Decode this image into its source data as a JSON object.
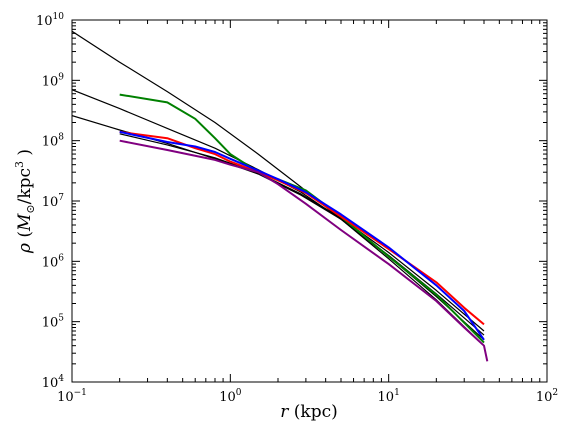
{
  "chart_data": {
    "type": "line",
    "xscale": "log",
    "yscale": "log",
    "xlim": [
      0.1,
      100
    ],
    "ylim": [
      10000,
      10000000000
    ],
    "x_ticks": [
      {
        "value": 0.1,
        "base": "10",
        "exp": "−1"
      },
      {
        "value": 1,
        "base": "10",
        "exp": "0"
      },
      {
        "value": 10,
        "base": "10",
        "exp": "1"
      },
      {
        "value": 100,
        "base": "10",
        "exp": "2"
      }
    ],
    "y_ticks": [
      {
        "value": 10000,
        "base": "10",
        "exp": "4"
      },
      {
        "value": 100000,
        "base": "10",
        "exp": "5"
      },
      {
        "value": 1000000,
        "base": "10",
        "exp": "6"
      },
      {
        "value": 10000000,
        "base": "10",
        "exp": "7"
      },
      {
        "value": 100000000,
        "base": "10",
        "exp": "8"
      },
      {
        "value": 1000000000,
        "base": "10",
        "exp": "9"
      },
      {
        "value": 10000000000,
        "base": "10",
        "exp": "10"
      }
    ],
    "xlabel": {
      "symbol": "r",
      "rest": " (kpc)"
    },
    "ylabel": {
      "symbol": "ρ",
      "open": " (",
      "m": "M",
      "sub": "⊙",
      "unit": "/kpc",
      "sup": "3",
      "close": " )"
    },
    "grid": false,
    "legend": "none",
    "series": [
      {
        "color": "#000000",
        "x": [
          0.1,
          0.2,
          0.4,
          0.8,
          1.5,
          2.8,
          5,
          10,
          20,
          40
        ],
        "y": [
          6500000000,
          2000000000,
          650000000,
          200000000,
          60000000,
          17000000,
          5000000,
          1100000,
          230000,
          40000
        ]
      },
      {
        "color": "#000000",
        "x": [
          0.1,
          0.2,
          0.4,
          0.8,
          1.5,
          2.8,
          5,
          10,
          20,
          40
        ],
        "y": [
          700000000,
          340000000,
          160000000,
          75000000,
          33000000,
          14000000,
          5000000,
          1200000,
          260000,
          50000
        ]
      },
      {
        "color": "#000000",
        "x": [
          0.1,
          0.2,
          0.4,
          0.8,
          1.5,
          2.8,
          5,
          10,
          20,
          40
        ],
        "y": [
          260000000,
          150000000,
          90000000,
          50000000,
          28000000,
          12500000,
          5000000,
          1250000,
          290000,
          60000
        ]
      },
      {
        "color": "#000000",
        "x": [
          0.2,
          0.4,
          0.8,
          1.5,
          2.8,
          5,
          10,
          20,
          40
        ],
        "y": [
          130000000,
          85000000,
          52000000,
          29000000,
          13000000,
          5200000,
          1400000,
          330000,
          70000
        ]
      },
      {
        "color": "#008000",
        "x": [
          0.2,
          0.4,
          0.6,
          0.8,
          1.0,
          1.5,
          2.0,
          3.0,
          5,
          10,
          20,
          40
        ],
        "y": [
          580000000,
          430000000,
          230000000,
          110000000,
          60000000,
          30000000,
          23000000,
          15000000,
          5500000,
          1200000,
          280000,
          45000
        ]
      },
      {
        "color": "#ff0000",
        "x": [
          0.2,
          0.4,
          0.6,
          0.8,
          1.0,
          1.5,
          2.0,
          3.0,
          5,
          10,
          20,
          30,
          40
        ],
        "y": [
          140000000,
          110000000,
          75000000,
          60000000,
          45000000,
          30000000,
          22000000,
          13500000,
          5500000,
          1600000,
          450000,
          170000,
          90000
        ]
      },
      {
        "color": "#0000ff",
        "x": [
          0.2,
          0.4,
          0.6,
          0.8,
          1.0,
          1.5,
          2.0,
          3.0,
          5,
          10,
          20,
          30,
          40
        ],
        "y": [
          140000000,
          95000000,
          80000000,
          65000000,
          50000000,
          32000000,
          23000000,
          14000000,
          6000000,
          1700000,
          400000,
          150000,
          50000
        ]
      },
      {
        "color": "#800080",
        "x": [
          0.2,
          0.4,
          0.8,
          1.0,
          1.5,
          2.0,
          3.0,
          5,
          10,
          20,
          30,
          40,
          42
        ],
        "y": [
          100000000,
          70000000,
          48000000,
          40000000,
          30000000,
          19000000,
          9000000,
          3300000,
          900000,
          220000,
          80000,
          40000,
          22000
        ]
      }
    ]
  }
}
